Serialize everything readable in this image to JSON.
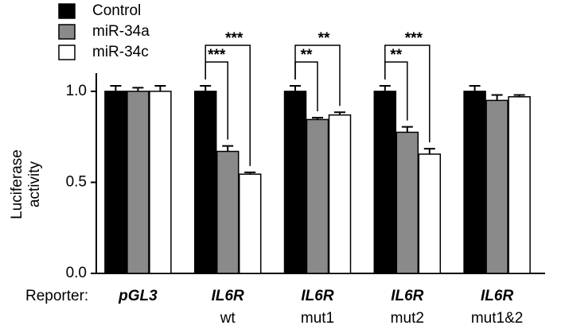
{
  "chart_data": {
    "type": "bar",
    "x_label": "Reporter:",
    "y_label": [
      "Luciferase",
      "activity"
    ],
    "categories": [
      [
        "pGL3"
      ],
      [
        "IL6R",
        "wt"
      ],
      [
        "IL6R",
        "mut1"
      ],
      [
        "IL6R",
        "mut2"
      ],
      [
        "IL6R",
        "mut1&2"
      ]
    ],
    "series": [
      {
        "name": "Control",
        "color": "#000000",
        "values": [
          1.0,
          1.0,
          1.0,
          1.0,
          1.0
        ],
        "errors": [
          0.03,
          0.03,
          0.03,
          0.03,
          0.03
        ],
        "significance": [
          null,
          null,
          null,
          null,
          null
        ]
      },
      {
        "name": "miR-34a",
        "color": "#8a8a8a",
        "values": [
          1.0,
          0.67,
          0.845,
          0.775,
          0.95
        ],
        "errors": [
          0.02,
          0.03,
          0.01,
          0.03,
          0.03
        ],
        "significance": [
          null,
          "***",
          "**",
          "**",
          null
        ]
      },
      {
        "name": "miR-34c",
        "color": "#ffffff",
        "values": [
          1.0,
          0.545,
          0.87,
          0.655,
          0.97
        ],
        "errors": [
          0.03,
          0.01,
          0.015,
          0.03,
          0.01
        ],
        "significance": [
          null,
          "***",
          "**",
          "***",
          null
        ]
      }
    ],
    "ylim": [
      0,
      1.1
    ],
    "yticks": [
      {
        "value": 0,
        "label": "0.0"
      },
      0.5,
      {
        "value": 1,
        "label": "1.0"
      }
    ]
  }
}
